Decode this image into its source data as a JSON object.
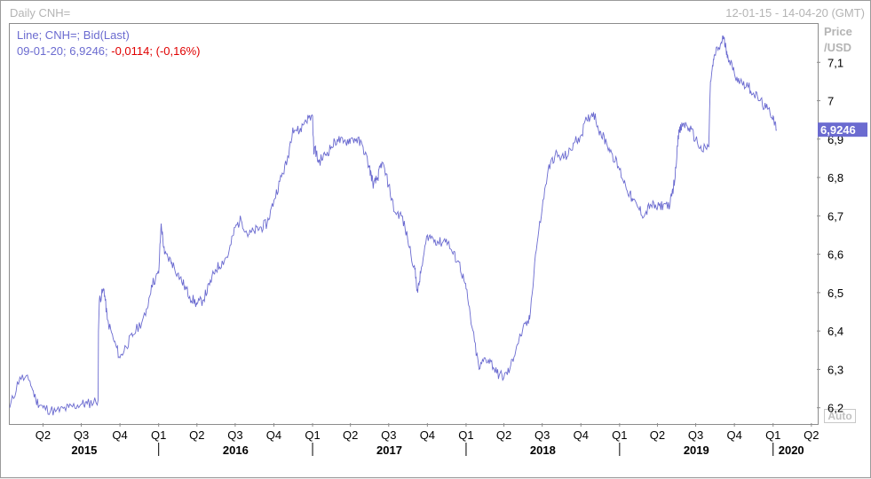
{
  "header": {
    "title": "Daily CNH=",
    "date_range": "12-01-15 - 14-04-20 (GMT)"
  },
  "legend": {
    "line1": "Line; CNH=; Bid(Last)",
    "line2_prefix": "09-01-20; 6,9246;",
    "line2_change": "-0,0114; (-0,16%)"
  },
  "axis_unit": {
    "line1": "Price",
    "line2": "/USD"
  },
  "auto_button": "Auto",
  "colors": {
    "series": "#6b6bd0",
    "change_negative": "#e00000",
    "last_box": "#6b6bd0"
  },
  "chart_data": {
    "type": "line",
    "series": [
      {
        "name": "CNH=",
        "x": [
          "2015-01-12",
          "2015-02-05",
          "2015-03-01",
          "2015-03-15",
          "2015-04-01",
          "2015-05-01",
          "2015-06-01",
          "2015-07-01",
          "2015-07-15",
          "2015-08-10",
          "2015-08-11",
          "2015-08-13",
          "2015-08-24",
          "2015-09-01",
          "2015-09-15",
          "2015-10-01",
          "2015-10-15",
          "2015-11-01",
          "2015-12-01",
          "2015-12-15",
          "2016-01-01",
          "2016-01-07",
          "2016-01-15",
          "2016-02-01",
          "2016-02-15",
          "2016-03-01",
          "2016-03-15",
          "2016-04-01",
          "2016-04-15",
          "2016-05-01",
          "2016-05-15",
          "2016-06-01",
          "2016-06-15",
          "2016-07-01",
          "2016-07-15",
          "2016-08-01",
          "2016-08-15",
          "2016-09-01",
          "2016-09-15",
          "2016-10-01",
          "2016-10-15",
          "2016-11-01",
          "2016-11-15",
          "2016-12-01",
          "2016-12-15",
          "2017-01-01",
          "2017-01-04",
          "2017-01-06",
          "2017-01-15",
          "2017-02-01",
          "2017-02-15",
          "2017-03-01",
          "2017-03-15",
          "2017-04-01",
          "2017-04-15",
          "2017-05-01",
          "2017-05-15",
          "2017-05-26",
          "2017-06-05",
          "2017-06-15",
          "2017-07-01",
          "2017-07-15",
          "2017-08-01",
          "2017-08-15",
          "2017-09-01",
          "2017-09-08",
          "2017-09-15",
          "2017-10-01",
          "2017-10-15",
          "2017-11-01",
          "2017-11-15",
          "2017-12-01",
          "2017-12-15",
          "2018-01-01",
          "2018-01-15",
          "2018-02-01",
          "2018-02-15",
          "2018-03-01",
          "2018-03-15",
          "2018-04-01",
          "2018-04-15",
          "2018-05-01",
          "2018-05-15",
          "2018-06-01",
          "2018-06-15",
          "2018-07-01",
          "2018-07-15",
          "2018-08-01",
          "2018-08-15",
          "2018-09-01",
          "2018-09-15",
          "2018-10-01",
          "2018-10-15",
          "2018-10-31",
          "2018-11-15",
          "2018-12-01",
          "2018-12-15",
          "2019-01-01",
          "2019-01-15",
          "2019-02-01",
          "2019-02-15",
          "2019-03-01",
          "2019-03-15",
          "2019-04-01",
          "2019-04-15",
          "2019-05-01",
          "2019-05-13",
          "2019-05-20",
          "2019-06-01",
          "2019-06-15",
          "2019-07-01",
          "2019-07-15",
          "2019-08-01",
          "2019-08-05",
          "2019-08-15",
          "2019-09-01",
          "2019-09-03",
          "2019-09-15",
          "2019-10-01",
          "2019-10-15",
          "2019-11-01",
          "2019-11-15",
          "2019-12-01",
          "2019-12-15",
          "2020-01-01",
          "2020-01-09"
        ],
        "values": [
          6.2,
          6.28,
          6.27,
          6.22,
          6.2,
          6.19,
          6.2,
          6.21,
          6.21,
          6.22,
          6.4,
          6.48,
          6.51,
          6.43,
          6.38,
          6.33,
          6.36,
          6.39,
          6.44,
          6.52,
          6.55,
          6.68,
          6.6,
          6.58,
          6.55,
          6.52,
          6.49,
          6.47,
          6.48,
          6.52,
          6.56,
          6.58,
          6.6,
          6.67,
          6.69,
          6.65,
          6.66,
          6.67,
          6.68,
          6.74,
          6.79,
          6.84,
          6.93,
          6.92,
          6.95,
          6.96,
          6.86,
          6.88,
          6.84,
          6.86,
          6.88,
          6.9,
          6.89,
          6.9,
          6.9,
          6.88,
          6.83,
          6.78,
          6.8,
          6.84,
          6.78,
          6.71,
          6.7,
          6.64,
          6.56,
          6.5,
          6.55,
          6.65,
          6.64,
          6.63,
          6.64,
          6.6,
          6.58,
          6.51,
          6.41,
          6.3,
          6.33,
          6.32,
          6.29,
          6.28,
          6.3,
          6.36,
          6.4,
          6.43,
          6.6,
          6.72,
          6.82,
          6.86,
          6.85,
          6.86,
          6.89,
          6.91,
          6.95,
          6.97,
          6.92,
          6.89,
          6.86,
          6.82,
          6.78,
          6.74,
          6.72,
          6.7,
          6.73,
          6.72,
          6.73,
          6.73,
          6.8,
          6.91,
          6.94,
          6.93,
          6.9,
          6.87,
          6.88,
          7.05,
          7.12,
          7.15,
          7.17,
          7.12,
          7.07,
          7.05,
          7.04,
          7.02,
          7.0,
          6.98,
          6.96,
          6.9246
        ]
      }
    ],
    "ylim": [
      6.16,
      7.2
    ],
    "y_ticks": [
      6.2,
      6.3,
      6.4,
      6.5,
      6.6,
      6.7,
      6.8,
      6.9,
      7.0,
      7.1
    ],
    "y_tick_labels": [
      "6,2",
      "6,3",
      "6,4",
      "6,5",
      "6,6",
      "6,7",
      "6,8",
      "6,9",
      "7",
      "7,1"
    ],
    "xlim": [
      "2015-01-12",
      "2020-04-14"
    ],
    "quarter_ticks": [
      {
        "date": "2015-04-01",
        "label": "Q2"
      },
      {
        "date": "2015-07-01",
        "label": "Q3"
      },
      {
        "date": "2015-10-01",
        "label": "Q4"
      },
      {
        "date": "2016-01-01",
        "label": "Q1"
      },
      {
        "date": "2016-04-01",
        "label": "Q2"
      },
      {
        "date": "2016-07-01",
        "label": "Q3"
      },
      {
        "date": "2016-10-01",
        "label": "Q4"
      },
      {
        "date": "2017-01-01",
        "label": "Q1"
      },
      {
        "date": "2017-04-01",
        "label": "Q2"
      },
      {
        "date": "2017-07-01",
        "label": "Q3"
      },
      {
        "date": "2017-10-01",
        "label": "Q4"
      },
      {
        "date": "2018-01-01",
        "label": "Q1"
      },
      {
        "date": "2018-04-01",
        "label": "Q2"
      },
      {
        "date": "2018-07-01",
        "label": "Q3"
      },
      {
        "date": "2018-10-01",
        "label": "Q4"
      },
      {
        "date": "2019-01-01",
        "label": "Q1"
      },
      {
        "date": "2019-04-01",
        "label": "Q2"
      },
      {
        "date": "2019-07-01",
        "label": "Q3"
      },
      {
        "date": "2019-10-01",
        "label": "Q4"
      },
      {
        "date": "2020-01-01",
        "label": "Q1"
      },
      {
        "date": "2020-04-01",
        "label": "Q2"
      }
    ],
    "year_labels": [
      "2015",
      "2016",
      "2017",
      "2018",
      "2019",
      "2020"
    ],
    "last_value": "6,9246",
    "grid": false
  }
}
